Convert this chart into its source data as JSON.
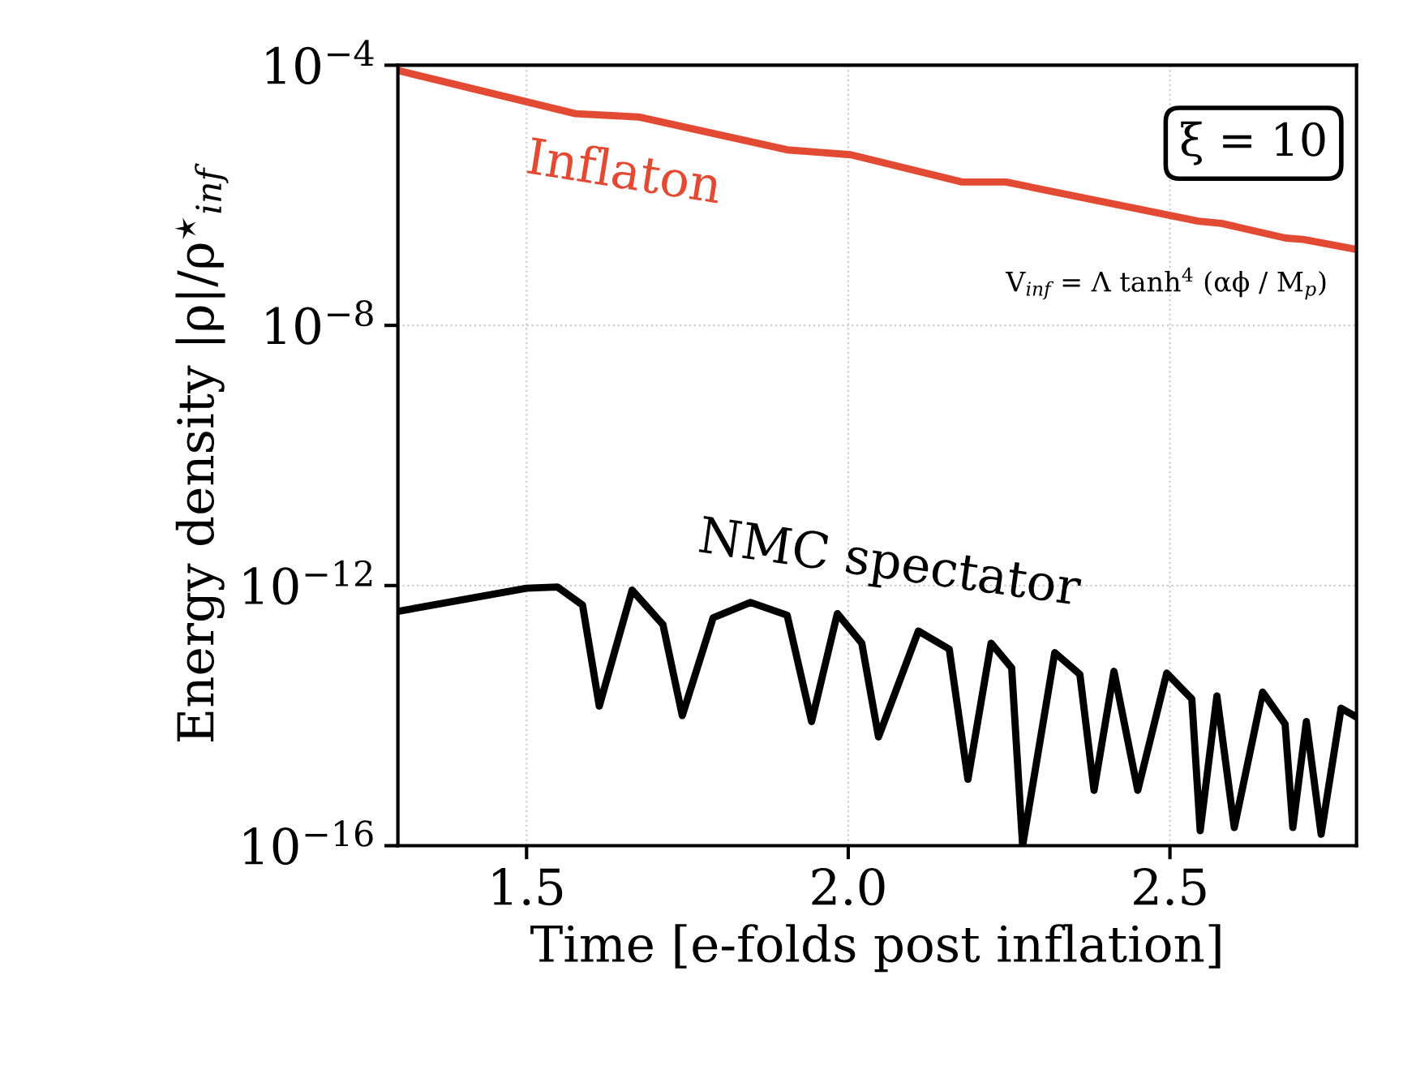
{
  "chart_data": {
    "type": "line",
    "xlabel": "Time [e-folds post inflation]",
    "ylabel": "Energy density |ρ|/ρ$^{⋆}$$_{inf}$",
    "log": "y",
    "xlim": [
      1.3,
      2.79
    ],
    "xticks": [
      1.5,
      {
        "value": 2.0,
        "label": "2.0"
      },
      2.5
    ],
    "ylim": [
      1e-16,
      0.0001
    ],
    "yticks": [
      {
        "value": 1e-16,
        "label": "10$^{−16}$"
      },
      {
        "value": 1e-12,
        "label": "10$^{−12}$"
      },
      {
        "value": 1e-08,
        "label": "10$^{−8}$"
      },
      {
        "value": 0.0001,
        "label": "10$^{−4}$"
      }
    ],
    "grid": true,
    "legend": false,
    "line_style": "solid",
    "marker": "none",
    "annotations": [
      "ξ = 10",
      "V$_{inf}$ = Λ tanh$^{4}$ (αϕ / M$_{p}$)"
    ],
    "series": [
      {
        "name": "Inflaton",
        "color": "#e24a33",
        "x": [
          1.3,
          1.576,
          1.674,
          1.905,
          2.004,
          2.177,
          2.245,
          2.544,
          2.58,
          2.68,
          2.707,
          2.785
        ],
        "values": [
          8.3e-05,
          1.8e-05,
          1.6e-05,
          5e-06,
          4.2e-06,
          1.6e-06,
          1.6e-06,
          4e-07,
          3.7e-07,
          2.2e-07,
          2.1e-07,
          1.5e-07
        ]
      },
      {
        "name": "NMC spectator",
        "color": "#000000",
        "x": [
          1.3,
          1.5,
          1.548,
          1.587,
          1.613,
          1.664,
          1.712,
          1.742,
          1.79,
          1.848,
          1.905,
          1.943,
          1.983,
          2.021,
          2.047,
          2.109,
          2.157,
          2.186,
          2.222,
          2.254,
          2.271,
          2.321,
          2.36,
          2.382,
          2.413,
          2.45,
          2.495,
          2.534,
          2.547,
          2.573,
          2.6,
          2.644,
          2.679,
          2.691,
          2.712,
          2.735,
          2.766,
          2.786
        ],
        "values": [
          4e-13,
          9.1e-13,
          9.5e-13,
          5e-13,
          1.4e-14,
          8.5e-13,
          2.5e-13,
          1e-14,
          3.2e-13,
          5.5e-13,
          3.5e-13,
          8.1e-15,
          3.7e-13,
          1.3e-13,
          4.7e-15,
          2e-13,
          1.05e-13,
          1.05e-15,
          1.3e-13,
          5.4e-14,
          1e-16,
          9.3e-14,
          4.3e-14,
          7.1e-16,
          4.8e-14,
          7.1e-16,
          4.5e-14,
          1.8e-14,
          1.7e-16,
          2e-14,
          1.9e-16,
          2.3e-14,
          7.4e-15,
          1.9e-16,
          8.1e-15,
          1.5e-16,
          1.3e-14,
          1e-14
        ]
      }
    ]
  }
}
